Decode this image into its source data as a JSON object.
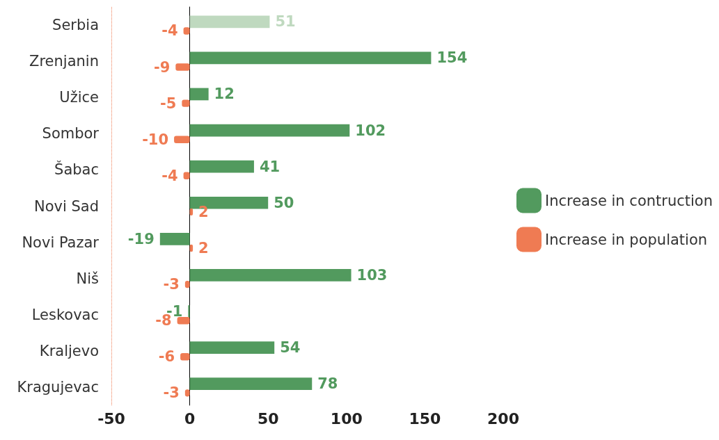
{
  "chart_data": {
    "type": "bar",
    "orientation": "horizontal",
    "categories": [
      "Serbia",
      "Zrenjanin",
      "Užice",
      "Sombor",
      "Šabac",
      "Novi Sad",
      "Novi Pazar",
      "Niš",
      "Leskovac",
      "Kraljevo",
      "Kragujevac"
    ],
    "series": [
      {
        "name": "Increase in contruction",
        "color": "#529a5e",
        "colors": [
          "#bfd9bf",
          "#529a5e",
          "#529a5e",
          "#529a5e",
          "#529a5e",
          "#529a5e",
          "#529a5e",
          "#529a5e",
          "#529a5e",
          "#529a5e",
          "#529a5e"
        ],
        "values": [
          51,
          154,
          12,
          102,
          41,
          50,
          -19,
          103,
          -1,
          54,
          78
        ]
      },
      {
        "name": "Increase in population",
        "color": "#ef7b53",
        "values": [
          -4,
          -9,
          -5,
          -10,
          -4,
          2,
          2,
          -3,
          -8,
          -6,
          -3
        ]
      }
    ],
    "xlim": [
      -50,
      200
    ],
    "xticks": [
      -50,
      0,
      50,
      100,
      150,
      200
    ],
    "ref_lines": [
      {
        "axis": "x",
        "value": -50,
        "color": "#ef7b53",
        "line_style": "dotted"
      }
    ],
    "data_labels": true,
    "legend": "right"
  }
}
